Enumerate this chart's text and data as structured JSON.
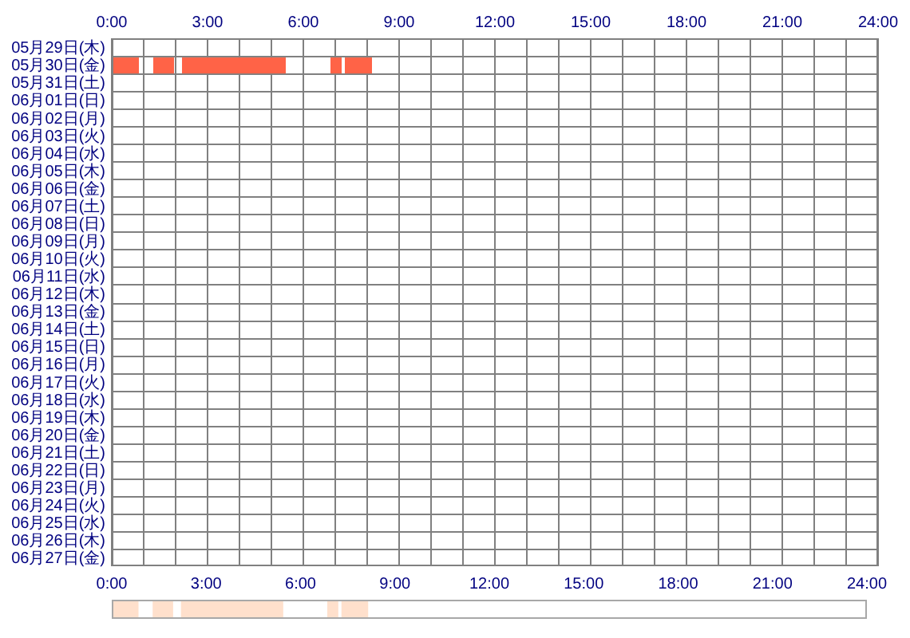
{
  "chart_data": [
    {
      "type": "bar",
      "orientation": "horizontal",
      "grid": true,
      "categories": [
        "05月29日(木)",
        "05月30日(金)",
        "05月31日(土)",
        "06月01日(日)",
        "06月02日(月)",
        "06月03日(火)",
        "06月04日(水)",
        "06月05日(木)",
        "06月06日(金)",
        "06月07日(土)",
        "06月08日(日)",
        "06月09日(月)",
        "06月10日(火)",
        "06月11日(水)",
        "06月12日(木)",
        "06月13日(金)",
        "06月14日(土)",
        "06月15日(日)",
        "06月16日(月)",
        "06月17日(火)",
        "06月18日(水)",
        "06月19日(木)",
        "06月20日(金)",
        "06月21日(土)",
        "06月22日(日)",
        "06月23日(月)",
        "06月24日(火)",
        "06月25日(水)",
        "06月26日(木)",
        "06月27日(金)"
      ],
      "xlim": [
        0,
        24
      ],
      "xticks": [
        {
          "value": 0,
          "label": "0:00"
        },
        {
          "value": 1,
          "label": null
        },
        {
          "value": 2,
          "label": null
        },
        {
          "value": 3,
          "label": "3:00"
        },
        {
          "value": 4,
          "label": null
        },
        {
          "value": 5,
          "label": null
        },
        {
          "value": 6,
          "label": "6:00"
        },
        {
          "value": 7,
          "label": null
        },
        {
          "value": 8,
          "label": null
        },
        {
          "value": 9,
          "label": "9:00"
        },
        {
          "value": 10,
          "label": null
        },
        {
          "value": 11,
          "label": null
        },
        {
          "value": 12,
          "label": "12:00"
        },
        {
          "value": 13,
          "label": null
        },
        {
          "value": 14,
          "label": null
        },
        {
          "value": 15,
          "label": "15:00"
        },
        {
          "value": 16,
          "label": null
        },
        {
          "value": 17,
          "label": null
        },
        {
          "value": 18,
          "label": "18:00"
        },
        {
          "value": 19,
          "label": null
        },
        {
          "value": 20,
          "label": null
        },
        {
          "value": 21,
          "label": "21:00"
        },
        {
          "value": 22,
          "label": null
        },
        {
          "value": 23,
          "label": null
        },
        {
          "value": 24,
          "label": "24:00"
        }
      ],
      "series": [
        {
          "color": "#ff6347",
          "base": [
            null,
            0,
            null,
            null,
            null,
            null,
            null,
            null,
            null,
            null,
            null,
            null,
            null,
            null,
            null,
            null,
            null,
            null,
            null,
            null,
            null,
            null,
            null,
            null,
            null,
            null,
            null,
            null,
            null,
            null
          ],
          "values": [
            null,
            0.85,
            null,
            null,
            null,
            null,
            null,
            null,
            null,
            null,
            null,
            null,
            null,
            null,
            null,
            null,
            null,
            null,
            null,
            null,
            null,
            null,
            null,
            null,
            null,
            null,
            null,
            null,
            null,
            null
          ]
        },
        {
          "color": "#ff6347",
          "base": [
            null,
            1.3,
            null,
            null,
            null,
            null,
            null,
            null,
            null,
            null,
            null,
            null,
            null,
            null,
            null,
            null,
            null,
            null,
            null,
            null,
            null,
            null,
            null,
            null,
            null,
            null,
            null,
            null,
            null,
            null
          ],
          "values": [
            null,
            0.65,
            null,
            null,
            null,
            null,
            null,
            null,
            null,
            null,
            null,
            null,
            null,
            null,
            null,
            null,
            null,
            null,
            null,
            null,
            null,
            null,
            null,
            null,
            null,
            null,
            null,
            null,
            null,
            null
          ]
        },
        {
          "color": "#ff6347",
          "base": [
            null,
            2.2,
            null,
            null,
            null,
            null,
            null,
            null,
            null,
            null,
            null,
            null,
            null,
            null,
            null,
            null,
            null,
            null,
            null,
            null,
            null,
            null,
            null,
            null,
            null,
            null,
            null,
            null,
            null,
            null
          ],
          "values": [
            null,
            3.25,
            null,
            null,
            null,
            null,
            null,
            null,
            null,
            null,
            null,
            null,
            null,
            null,
            null,
            null,
            null,
            null,
            null,
            null,
            null,
            null,
            null,
            null,
            null,
            null,
            null,
            null,
            null,
            null
          ]
        },
        {
          "color": "#ff6347",
          "base": [
            null,
            6.85,
            null,
            null,
            null,
            null,
            null,
            null,
            null,
            null,
            null,
            null,
            null,
            null,
            null,
            null,
            null,
            null,
            null,
            null,
            null,
            null,
            null,
            null,
            null,
            null,
            null,
            null,
            null,
            null
          ],
          "values": [
            null,
            0.35,
            null,
            null,
            null,
            null,
            null,
            null,
            null,
            null,
            null,
            null,
            null,
            null,
            null,
            null,
            null,
            null,
            null,
            null,
            null,
            null,
            null,
            null,
            null,
            null,
            null,
            null,
            null,
            null
          ]
        },
        {
          "color": "#ff6347",
          "base": [
            null,
            7.3,
            null,
            null,
            null,
            null,
            null,
            null,
            null,
            null,
            null,
            null,
            null,
            null,
            null,
            null,
            null,
            null,
            null,
            null,
            null,
            null,
            null,
            null,
            null,
            null,
            null,
            null,
            null,
            null
          ],
          "values": [
            null,
            0.85,
            null,
            null,
            null,
            null,
            null,
            null,
            null,
            null,
            null,
            null,
            null,
            null,
            null,
            null,
            null,
            null,
            null,
            null,
            null,
            null,
            null,
            null,
            null,
            null,
            null,
            null,
            null,
            null
          ]
        }
      ]
    },
    {
      "type": "bar",
      "orientation": "horizontal",
      "tick_labels": "x",
      "categories": [
        null
      ],
      "xlim": [
        0,
        24
      ],
      "xticks": [
        {
          "value": 0,
          "label": "0:00"
        },
        {
          "value": 3,
          "label": "3:00"
        },
        {
          "value": 6,
          "label": "6:00"
        },
        {
          "value": 9,
          "label": "9:00"
        },
        {
          "value": 12,
          "label": "12:00"
        },
        {
          "value": 15,
          "label": "15:00"
        },
        {
          "value": 18,
          "label": "18:00"
        },
        {
          "value": 21,
          "label": "21:00"
        },
        {
          "value": 24,
          "label": "24:00"
        }
      ],
      "series": [
        {
          "color": "#ffe0cc",
          "base": [
            0
          ],
          "values": [
            0.85
          ]
        },
        {
          "color": "#ffe0cc",
          "base": [
            1.3
          ],
          "values": [
            0.65
          ]
        },
        {
          "color": "#ffe0cc",
          "base": [
            2.2
          ],
          "values": [
            3.25
          ]
        },
        {
          "color": "#ffe0cc",
          "base": [
            6.85
          ],
          "values": [
            0.35
          ]
        },
        {
          "color": "#ffe0cc",
          "base": [
            7.3
          ],
          "values": [
            0.85
          ]
        }
      ]
    }
  ]
}
